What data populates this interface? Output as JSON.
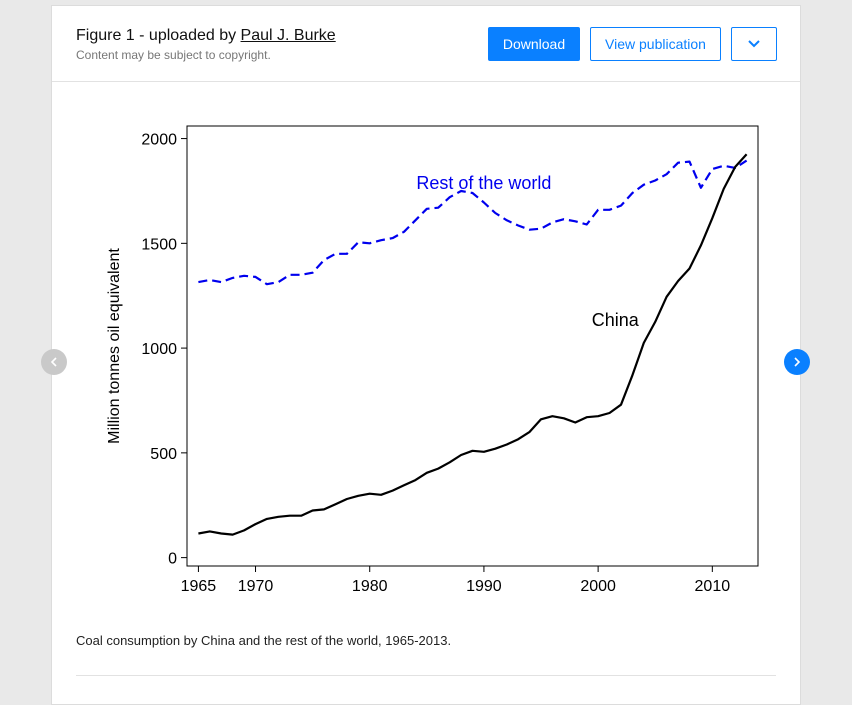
{
  "header": {
    "title_prefix": "Figure 1 - uploaded by ",
    "author": "Paul J. Burke",
    "subtitle": "Content may be subject to copyright.",
    "download_label": "Download",
    "view_publication_label": "View publication"
  },
  "caption": "Coal consumption by China and the rest of the world, 1965-2013.",
  "colors": {
    "accent": "#0a80ff",
    "rest_of_world": "#0000ee",
    "china": "#000000"
  },
  "icons": {
    "more": "chevron-down-icon",
    "prev": "chevron-left-icon",
    "next": "chevron-right-icon"
  },
  "chart_data": {
    "type": "line",
    "title": "",
    "xlabel": "",
    "ylabel": "Million tonnes oil equivalent",
    "xlim": [
      1964,
      2014
    ],
    "ylim": [
      -40,
      2060
    ],
    "x_ticks": [
      1965,
      1970,
      1980,
      1990,
      2000,
      2010
    ],
    "y_ticks": [
      0,
      500,
      1000,
      1500,
      2000
    ],
    "x": [
      1965,
      1966,
      1967,
      1968,
      1969,
      1970,
      1971,
      1972,
      1973,
      1974,
      1975,
      1976,
      1977,
      1978,
      1979,
      1980,
      1981,
      1982,
      1983,
      1984,
      1985,
      1986,
      1987,
      1988,
      1989,
      1990,
      1991,
      1992,
      1993,
      1994,
      1995,
      1996,
      1997,
      1998,
      1999,
      2000,
      2001,
      2002,
      2003,
      2004,
      2005,
      2006,
      2007,
      2008,
      2009,
      2010,
      2011,
      2012,
      2013
    ],
    "series": [
      {
        "name": "Rest of the world",
        "style": "dashed",
        "values": [
          1315,
          1325,
          1315,
          1335,
          1345,
          1340,
          1305,
          1315,
          1350,
          1350,
          1360,
          1420,
          1450,
          1450,
          1505,
          1500,
          1515,
          1525,
          1555,
          1610,
          1665,
          1670,
          1720,
          1750,
          1740,
          1695,
          1645,
          1610,
          1585,
          1565,
          1570,
          1600,
          1615,
          1605,
          1590,
          1660,
          1660,
          1680,
          1740,
          1780,
          1800,
          1830,
          1885,
          1890,
          1765,
          1855,
          1870,
          1860,
          1895
        ]
      },
      {
        "name": "China",
        "style": "solid",
        "values": [
          115,
          125,
          115,
          110,
          130,
          160,
          185,
          195,
          200,
          200,
          225,
          230,
          255,
          280,
          295,
          305,
          300,
          320,
          345,
          370,
          405,
          425,
          455,
          490,
          510,
          505,
          520,
          540,
          565,
          600,
          660,
          675,
          665,
          645,
          670,
          675,
          690,
          730,
          870,
          1025,
          1125,
          1245,
          1320,
          1380,
          1490,
          1620,
          1760,
          1865,
          1925
        ]
      }
    ],
    "annotations": [
      {
        "text": "Rest of the world",
        "x": 1990,
        "y": 1760,
        "color": "#0000ee"
      },
      {
        "text": "China",
        "x": 2001.5,
        "y": 1105,
        "color": "#000000"
      }
    ]
  }
}
